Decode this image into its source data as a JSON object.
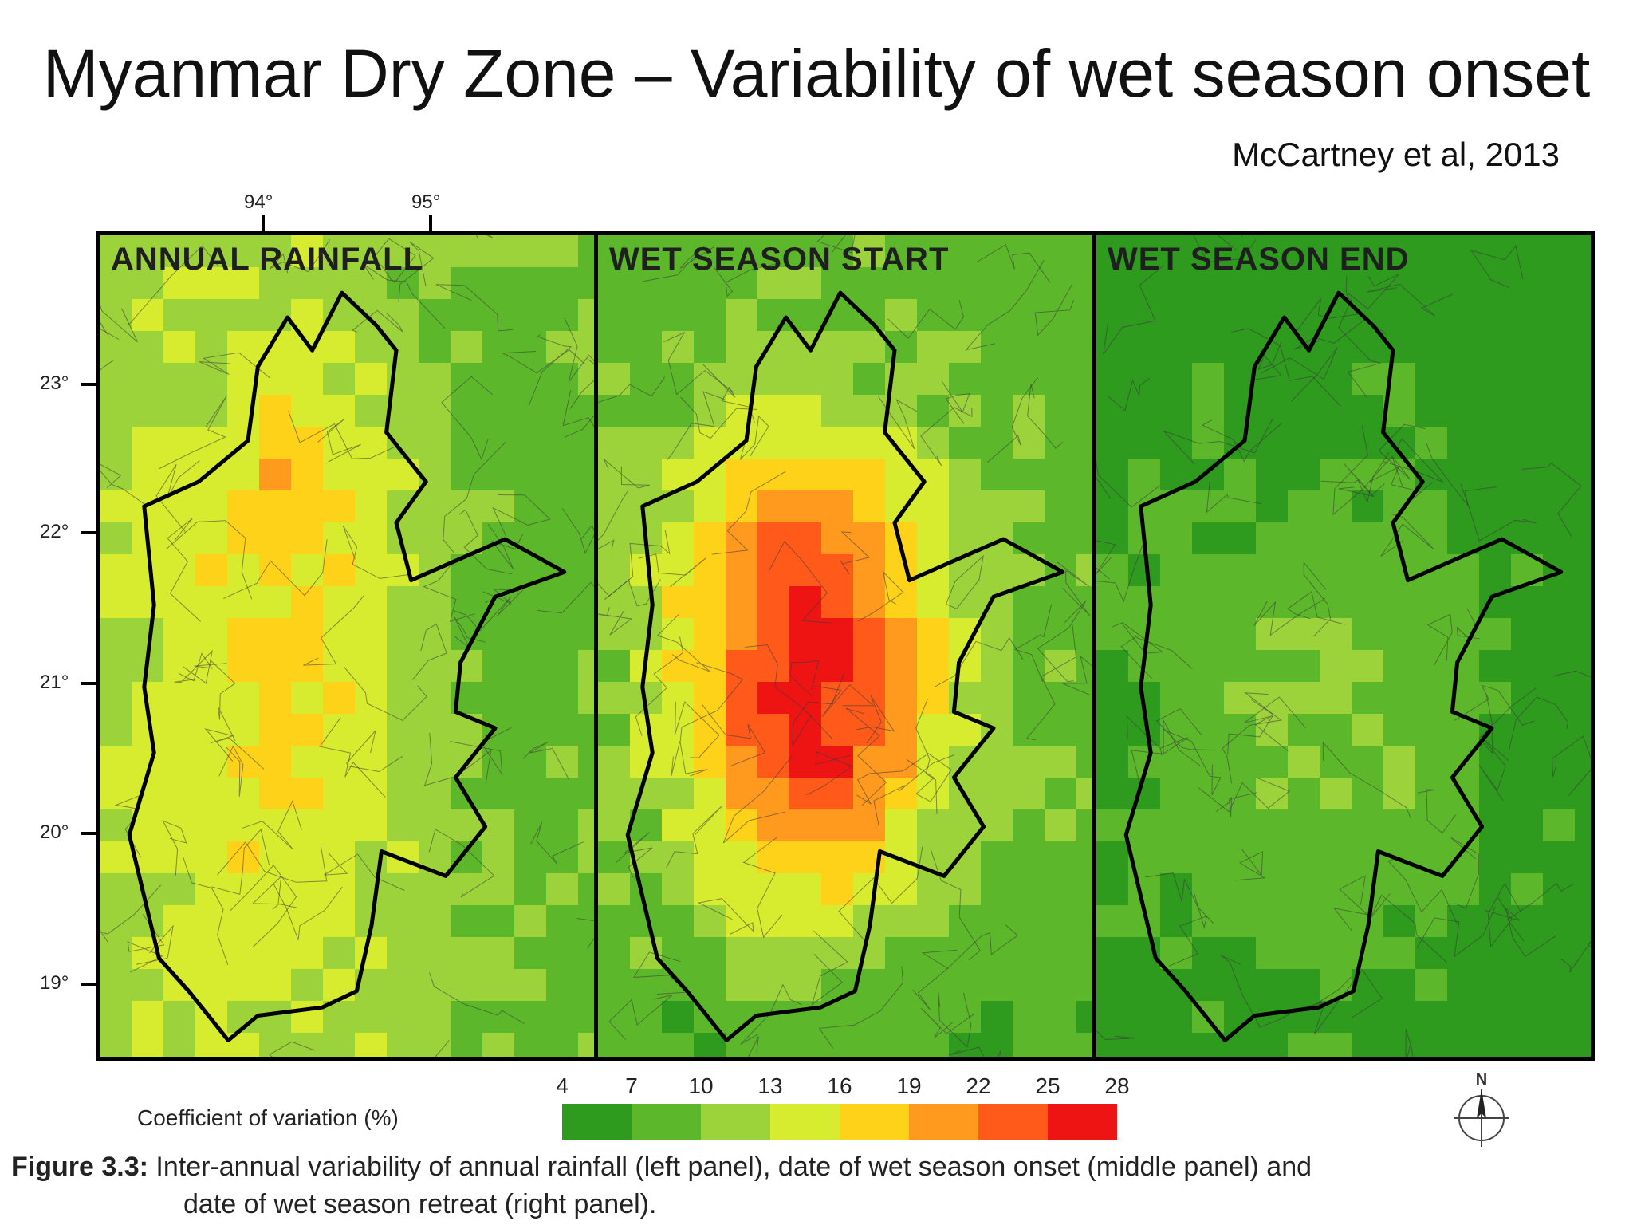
{
  "slide": {
    "title": "Myanmar Dry Zone – Variability of wet season onset",
    "citation": "McCartney et al, 2013"
  },
  "map": {
    "longitude_ticks": [
      "94°",
      "95°"
    ],
    "latitude_ticks": [
      "23°",
      "22°",
      "21°",
      "20°",
      "19°"
    ],
    "panels": [
      {
        "id": "annual-rainfall",
        "title": "ANNUAL RAINFALL"
      },
      {
        "id": "wet-season-start",
        "title": "WET SEASON START"
      },
      {
        "id": "wet-season-end",
        "title": "WET SEASON END"
      }
    ],
    "boundary_color": "#000000"
  },
  "legend": {
    "label": "Coefficient of variation (%)",
    "ticks": [
      "4",
      "7",
      "10",
      "13",
      "16",
      "19",
      "22",
      "25",
      "28"
    ],
    "colors": [
      "#2e9a1e",
      "#5cb82a",
      "#9cd23a",
      "#d7ec2e",
      "#ffd21a",
      "#ff9a1e",
      "#ff5a1a",
      "#ee1414"
    ]
  },
  "north_arrow": {
    "label": "N",
    "icon": "north-arrow-icon"
  },
  "caption": {
    "label": "Figure 3.3:",
    "line1": "Inter-annual variability of annual rainfall (left panel), date of wet season onset (middle panel) and",
    "line2": "date of wet season retreat (right panel)."
  }
}
